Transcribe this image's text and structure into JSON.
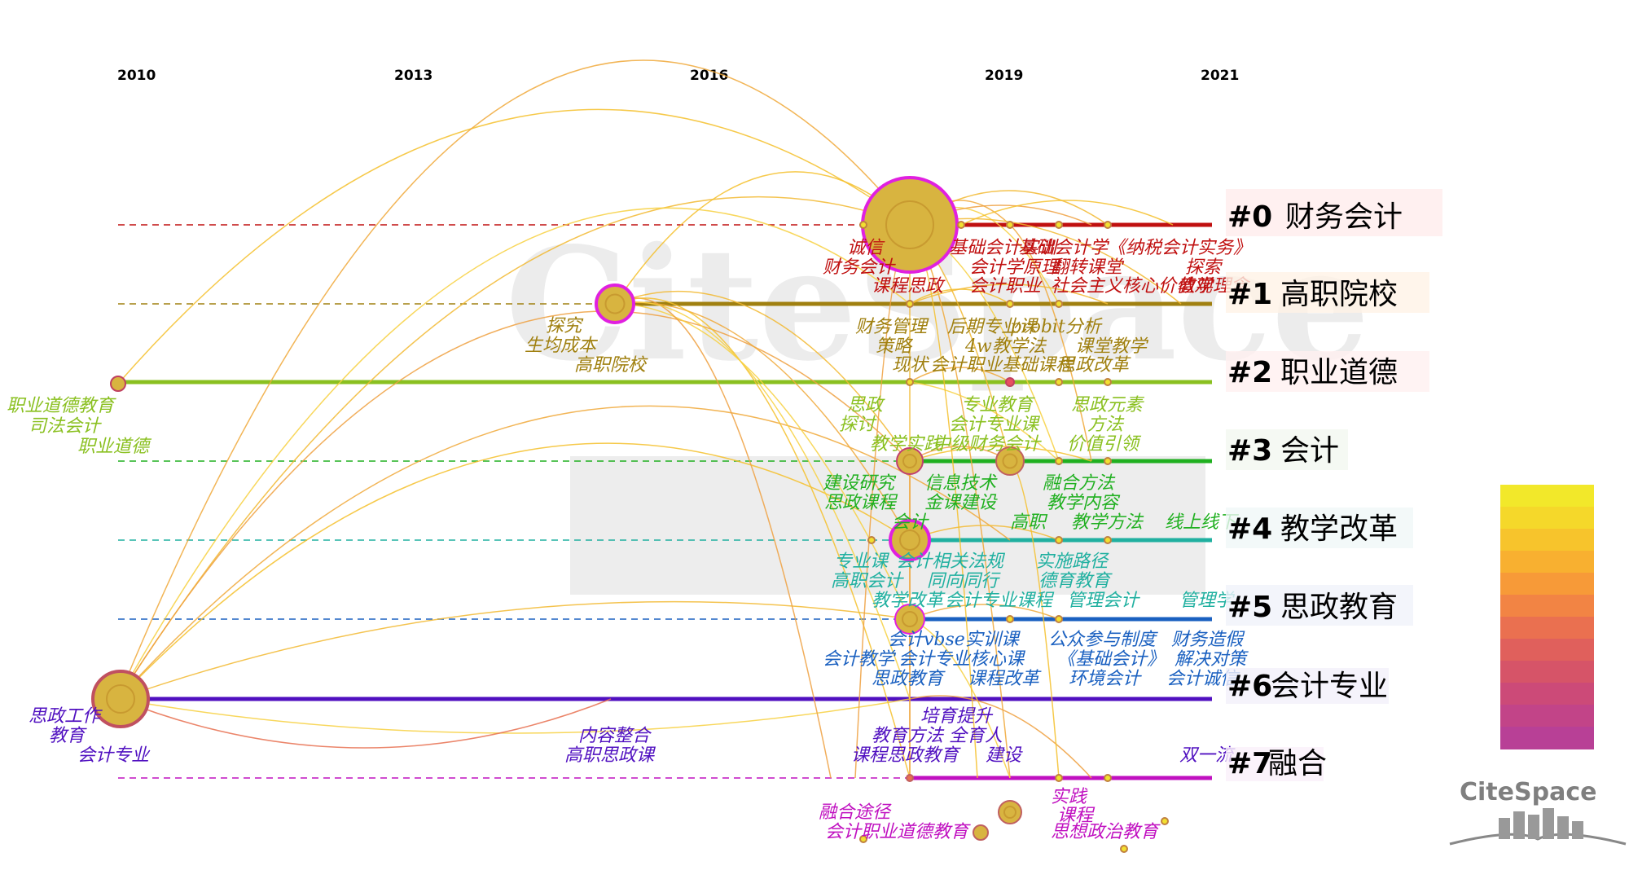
{
  "years": [
    "2010",
    "2013",
    "2016",
    "2019",
    "2021"
  ],
  "year_color": "#e020e0",
  "clusters": [
    {
      "id": "#0",
      "name": "财务会计",
      "color": "#c01010"
    },
    {
      "id": "#1",
      "name": "高职院校",
      "color": "#a08010"
    },
    {
      "id": "#2",
      "name": "职业道德",
      "color": "#8ac020"
    },
    {
      "id": "#3",
      "name": "会计",
      "color": "#20b020"
    },
    {
      "id": "#4",
      "name": "教学改革",
      "color": "#20b0a0"
    },
    {
      "id": "#5",
      "name": "思政教育",
      "color": "#1a60c0"
    },
    {
      "id": "#6",
      "name": "会计专业",
      "color": "#5010c0"
    },
    {
      "id": "#7",
      "name": "融合",
      "color": "#c010c0"
    }
  ],
  "keywords": [
    {
      "text": "职业道德教育",
      "cluster": 2
    },
    {
      "text": "司法会计",
      "cluster": 2
    },
    {
      "text": "职业道德",
      "cluster": 2
    },
    {
      "text": "探究",
      "cluster": 1
    },
    {
      "text": "生均成本",
      "cluster": 1
    },
    {
      "text": "高职院校",
      "cluster": 1
    },
    {
      "text": "诚信",
      "cluster": 0
    },
    {
      "text": "财务会计",
      "cluster": 0
    },
    {
      "text": "基础会计实训",
      "cluster": 0
    },
    {
      "text": "会计学原理",
      "cluster": 0
    },
    {
      "text": "基础会计学《纳税会计实务》",
      "cluster": 0
    },
    {
      "text": "翻转课堂",
      "cluster": 0
    },
    {
      "text": "探索",
      "cluster": 0
    },
    {
      "text": "课程思政",
      "cluster": 0
    },
    {
      "text": "会计职业",
      "cluster": 0
    },
    {
      "text": "社会主义核心价值观",
      "cluster": 0
    },
    {
      "text": "教学理念",
      "cluster": 0
    },
    {
      "text": "财务管理",
      "cluster": 1
    },
    {
      "text": "后期专业课",
      "cluster": 1
    },
    {
      "text": "probit分析",
      "cluster": 1
    },
    {
      "text": "策略",
      "cluster": 1
    },
    {
      "text": "4w教学法",
      "cluster": 1
    },
    {
      "text": "课堂教学",
      "cluster": 1
    },
    {
      "text": "现状",
      "cluster": 1
    },
    {
      "text": "会计职业基础课程",
      "cluster": 1
    },
    {
      "text": "思政改革",
      "cluster": 1
    },
    {
      "text": "思政",
      "cluster": 2
    },
    {
      "text": "专业教育",
      "cluster": 2
    },
    {
      "text": "思政元素",
      "cluster": 2
    },
    {
      "text": "探讨",
      "cluster": 2
    },
    {
      "text": "会计专业课",
      "cluster": 2
    },
    {
      "text": "方法",
      "cluster": 2
    },
    {
      "text": "教学实践",
      "cluster": 2
    },
    {
      "text": "中级财务会计",
      "cluster": 2
    },
    {
      "text": "价值引领",
      "cluster": 2
    },
    {
      "text": "建设研究",
      "cluster": 3
    },
    {
      "text": "信息技术",
      "cluster": 3
    },
    {
      "text": "融合方法",
      "cluster": 3
    },
    {
      "text": "思政课程",
      "cluster": 3
    },
    {
      "text": "金课建设",
      "cluster": 3
    },
    {
      "text": "教学内容",
      "cluster": 3
    },
    {
      "text": "会计",
      "cluster": 3
    },
    {
      "text": "高职",
      "cluster": 3
    },
    {
      "text": "教学方法",
      "cluster": 3
    },
    {
      "text": "线上线下",
      "cluster": 3
    },
    {
      "text": "专业课",
      "cluster": 4
    },
    {
      "text": "会计相关法规",
      "cluster": 4
    },
    {
      "text": "实施路径",
      "cluster": 4
    },
    {
      "text": "高职会计",
      "cluster": 4
    },
    {
      "text": "同向同行",
      "cluster": 4
    },
    {
      "text": "德育教育",
      "cluster": 4
    },
    {
      "text": "教学改革",
      "cluster": 4
    },
    {
      "text": "会计专业课程",
      "cluster": 4
    },
    {
      "text": "管理会计",
      "cluster": 4
    },
    {
      "text": "管理学",
      "cluster": 4
    },
    {
      "text": "会计vbse实训课",
      "cluster": 5
    },
    {
      "text": "公众参与制度",
      "cluster": 5
    },
    {
      "text": "财务造假",
      "cluster": 5
    },
    {
      "text": "会计教学",
      "cluster": 5
    },
    {
      "text": "会计专业核心课",
      "cluster": 5
    },
    {
      "text": "《基础会计》",
      "cluster": 5
    },
    {
      "text": "解决对策",
      "cluster": 5
    },
    {
      "text": "思政教育",
      "cluster": 5
    },
    {
      "text": "课程改革",
      "cluster": 5
    },
    {
      "text": "环境会计",
      "cluster": 5
    },
    {
      "text": "会计诚信",
      "cluster": 5
    },
    {
      "text": "思政工作",
      "cluster": 6
    },
    {
      "text": "教育",
      "cluster": 6
    },
    {
      "text": "会计专业",
      "cluster": 6
    },
    {
      "text": "内容整合",
      "cluster": 6
    },
    {
      "text": "高职思政课",
      "cluster": 6
    },
    {
      "text": "培育提升",
      "cluster": 6
    },
    {
      "text": "教育方法",
      "cluster": 6
    },
    {
      "text": "全育人",
      "cluster": 6
    },
    {
      "text": "课程思政教育",
      "cluster": 6
    },
    {
      "text": "建设",
      "cluster": 6
    },
    {
      "text": "双一流",
      "cluster": 6
    },
    {
      "text": "融合途径",
      "cluster": 7
    },
    {
      "text": "实践",
      "cluster": 7
    },
    {
      "text": "课程",
      "cluster": 7
    },
    {
      "text": "会计职业道德教育",
      "cluster": 7
    },
    {
      "text": "思想政治教育",
      "cluster": 7
    }
  ],
  "legend_colors": [
    "#f2e82a",
    "#f5d82a",
    "#f7c42c",
    "#f8b030",
    "#f79a38",
    "#f28444",
    "#ea7050",
    "#e0605c",
    "#d65468",
    "#cc4a78",
    "#c24488",
    "#b84096"
  ],
  "brand": {
    "name": "CiteSpace",
    "watermark": "CiteSpace"
  }
}
